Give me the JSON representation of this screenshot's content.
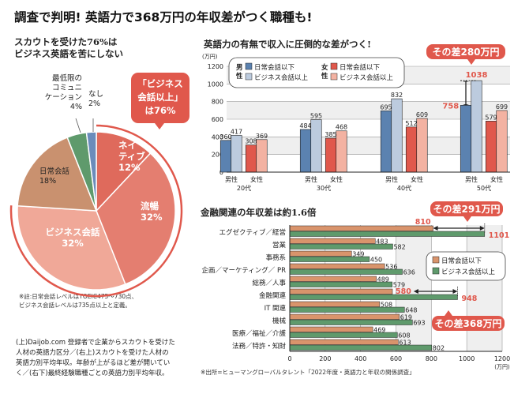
{
  "title": "調査で判明! 英語力で368万円の年収差がつく職種も!",
  "colors": {
    "men_basic": "#5b82b0",
    "men_business": "#bccbde",
    "women_basic": "#e0584c",
    "women_business": "#f3b2a2",
    "job_basic": "#d9946c",
    "job_business": "#5f9a6c",
    "accent": "#e0584c"
  },
  "pie": {
    "subtitle_lines": [
      "スカウトを受けた76%は",
      "ビジネス英語を苦にしない"
    ],
    "callout_lines": [
      "「ビジネス",
      "会話以上」",
      "は76%"
    ],
    "note_lines": [
      "※註:日常会話レベルはTOEIC475〜730点、",
      "ビジネス会話レベルは735点以上と定義。"
    ],
    "chart_data": {
      "type": "pie",
      "slices": [
        {
          "label": "ネイティブ",
          "value": 12,
          "color": "#df6a5c"
        },
        {
          "label": "流暢",
          "value": 32,
          "color": "#e47e70"
        },
        {
          "label": "ビジネス会話",
          "value": 32,
          "color": "#f0a898"
        },
        {
          "label": "日常会話",
          "value": 18,
          "color": "#c9916f"
        },
        {
          "label": "最低限のコミュニケーション",
          "value": 4,
          "color": "#5f9a6c"
        },
        {
          "label": "なし",
          "value": 2,
          "color": "#6b8cbb"
        }
      ],
      "display_labels": [
        [
          "ネイ",
          "ティブ",
          "12%"
        ],
        [
          "流暢",
          "32%"
        ],
        [
          "ビジネス会話",
          "32%"
        ],
        [
          "日常会話",
          "18%"
        ],
        [
          "最低限の",
          "コミュニ",
          "ケーション",
          "4%"
        ],
        [
          "なし",
          "2%"
        ]
      ]
    }
  },
  "caption_lines": [
    "(上)Daijob.com 登録者で企業からスカウトを受けた",
    "人材の英語力区分／(右上)スカウトを受けた人材の",
    "英語力別平均年収。年齢が上がるほど差が開いてい",
    "く／(右下)最終経験職種ごとの英語力別平均年収。"
  ],
  "age_chart": {
    "subtitle": "英語力の有無で収入に圧倒的な差がつく!",
    "unit": "(万円)",
    "callout": "その差280万円",
    "legend": {
      "men": "男性",
      "women": "女性",
      "basic": "日常会話以下",
      "business": "ビジネス会話以上"
    },
    "chart_data": {
      "type": "bar",
      "ylim": [
        0,
        1200
      ],
      "yticks": [
        0,
        200,
        400,
        600,
        800,
        1000,
        1200
      ],
      "categories": [
        "20代",
        "30代",
        "40代",
        "50代"
      ],
      "gender_labels": [
        "男性",
        "女性"
      ],
      "series": [
        {
          "name": "男性 日常会話以下",
          "values": [
            360,
            484,
            695,
            758
          ]
        },
        {
          "name": "男性 ビジネス会話以上",
          "values": [
            417,
            595,
            832,
            1038
          ]
        },
        {
          "name": "女性 日常会話以下",
          "values": [
            308,
            385,
            512,
            579
          ]
        },
        {
          "name": "女性 ビジネス会話以上",
          "values": [
            369,
            468,
            609,
            699
          ]
        }
      ]
    }
  },
  "job_chart": {
    "subtitle": "金融関連の年収差は約1.6倍",
    "unit": "(万円)",
    "callout_top": "その差291万円",
    "callout_bottom": "その差368万円",
    "legend": {
      "basic": "日常会話以下",
      "business": "ビジネス会話以上"
    },
    "source": "※出所=ヒューマングローバルタレント「2022年度・英語力と年収の関係調査」",
    "chart_data": {
      "type": "bar",
      "orientation": "horizontal",
      "xlim": [
        0,
        1200
      ],
      "xticks": [
        0,
        200,
        400,
        600,
        800,
        1000,
        1200
      ],
      "categories": [
        "エグゼクティブ／経営",
        "営業",
        "事務系",
        "企画／マーケティング／ PR",
        "総務／人事",
        "金融関連",
        "IT 関連",
        "機械",
        "医療／福祉／介護",
        "法務／特許・知財"
      ],
      "series": [
        {
          "name": "日常会話以下",
          "values": [
            810,
            483,
            349,
            536,
            489,
            580,
            508,
            619,
            469,
            613
          ]
        },
        {
          "name": "ビジネス会話以上",
          "values": [
            1101,
            582,
            450,
            636,
            579,
            948,
            648,
            693,
            608,
            802
          ]
        }
      ]
    }
  }
}
